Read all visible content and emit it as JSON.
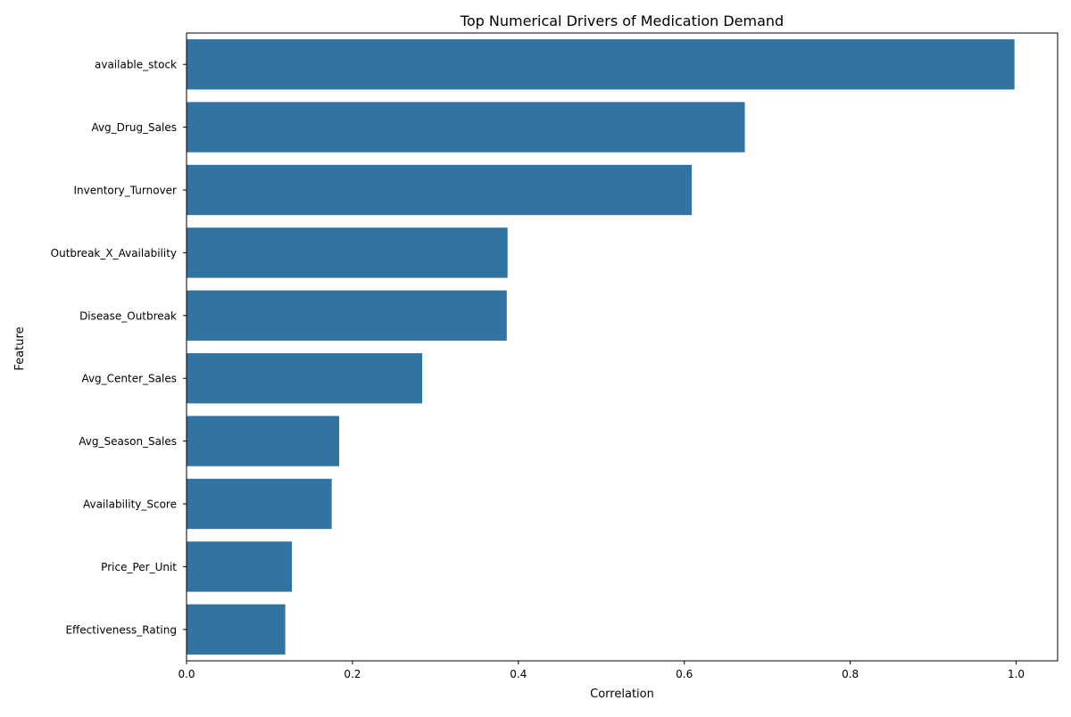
{
  "chart_data": {
    "type": "bar",
    "orientation": "horizontal",
    "title": "Top Numerical Drivers of Medication Demand",
    "xlabel": "Correlation",
    "ylabel": "Feature",
    "xlim": [
      0,
      1.05
    ],
    "xticks": [
      0.0,
      0.2,
      0.4,
      0.6,
      0.8,
      1.0
    ],
    "xtick_labels": [
      "0.0",
      "0.2",
      "0.4",
      "0.6",
      "0.8",
      "1.0"
    ],
    "grid": false,
    "bar_color": "#3274a1",
    "categories": [
      "available_stock",
      "Avg_Drug_Sales",
      "Inventory_Turnover",
      "Outbreak_X_Availability",
      "Disease_Outbreak",
      "Avg_Center_Sales",
      "Avg_Season_Sales",
      "Availability_Score",
      "Price_Per_Unit",
      "Effectiveness_Rating"
    ],
    "values": [
      0.998,
      0.673,
      0.609,
      0.387,
      0.386,
      0.284,
      0.184,
      0.175,
      0.127,
      0.119
    ]
  }
}
